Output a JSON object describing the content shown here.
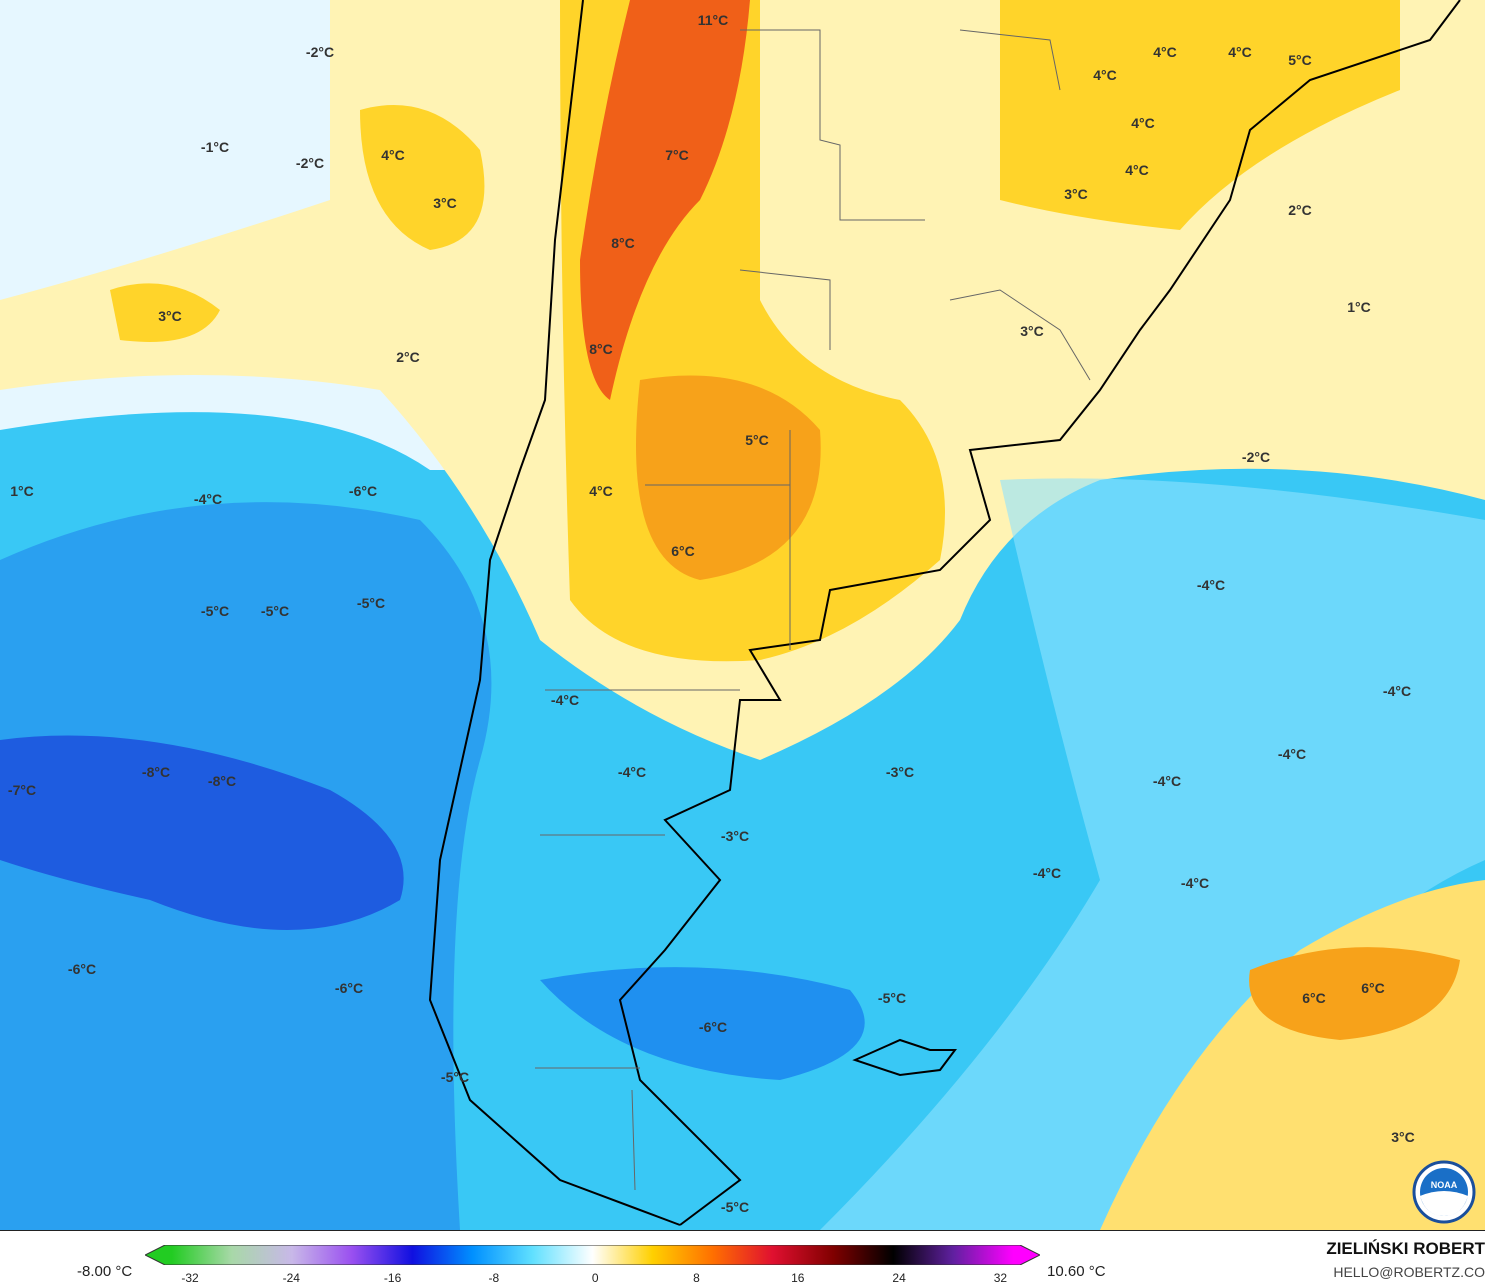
{
  "map": {
    "labels": [
      "-2°C",
      "-1°C",
      "-2°C",
      "4°C",
      "3°C",
      "3°C",
      "2°C",
      "11°C",
      "7°C",
      "8°C",
      "8°C",
      "5°C",
      "4°C",
      "6°C",
      "4°C",
      "4°C",
      "5°C",
      "4°C",
      "4°C",
      "4°C",
      "3°C",
      "2°C",
      "1°C",
      "3°C",
      "-2°C",
      "1°C",
      "-4°C",
      "-6°C",
      "-5°C",
      "-5°C",
      "-5°C",
      "-4°C",
      "-4°C",
      "-4°C",
      "-4°C",
      "-7°C",
      "-8°C",
      "-8°C",
      "-4°C",
      "-3°C",
      "-4°C",
      "-3°C",
      "-4°C",
      "-4°C",
      "-6°C",
      "-6°C",
      "-5°C",
      "6°C",
      "6°C",
      "-6°C",
      "-5°C",
      "3°C",
      "-5°C"
    ],
    "logo_text": "NOAA"
  },
  "legend": {
    "min_value": "-8.00 °C",
    "max_value": "10.60 °C",
    "ticks": [
      "-32",
      "-24",
      "-16",
      "-8",
      "0",
      "8",
      "16",
      "24",
      "32"
    ],
    "colors": [
      "#22cc22",
      "#a8d8a8",
      "#c8b8e8",
      "#9a50f0",
      "#1010e0",
      "#0090ff",
      "#60e0ff",
      "#ffffff",
      "#ffd000",
      "#ff7000",
      "#e01030",
      "#800000",
      "#000000",
      "#6020a0",
      "#ff00ff"
    ]
  },
  "credit": {
    "author": "ZIELIŃSKI ROBERT",
    "email": "HELLO@ROBERTZ.CO"
  }
}
